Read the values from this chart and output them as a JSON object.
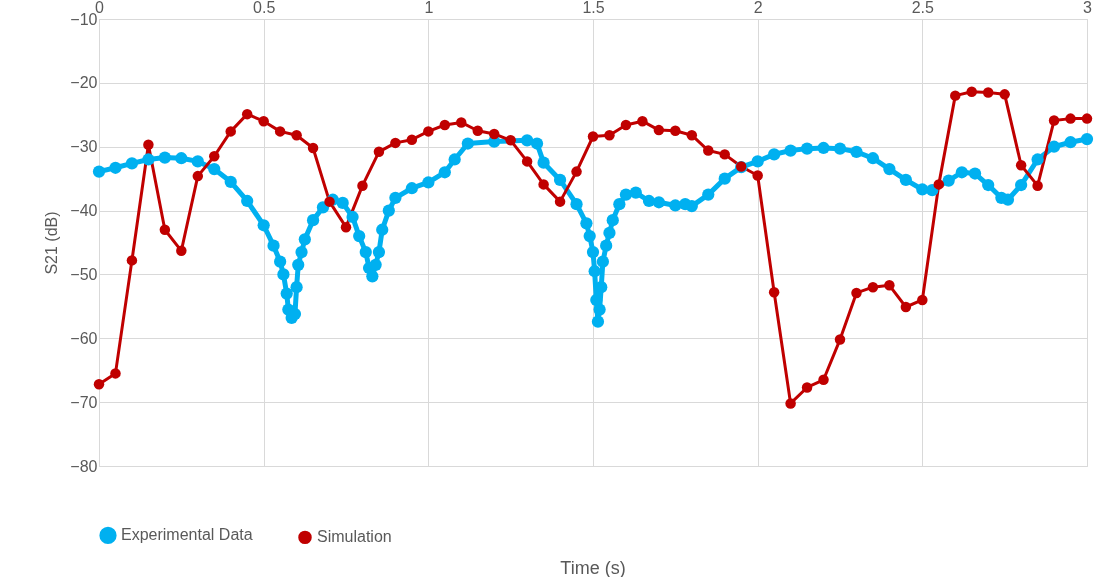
{
  "chart_data": {
    "type": "line",
    "xlabel": "Time (s)",
    "ylabel": "S21 (dB)",
    "xlim": [
      0,
      3
    ],
    "xticks": [
      0,
      0.5,
      1,
      1.5,
      2,
      2.5,
      3
    ],
    "ylim": [
      -80,
      -10
    ],
    "yticks": [
      -80,
      -70,
      -60,
      -50,
      -40,
      -30,
      -20,
      -10
    ],
    "grid": true,
    "legend": "bottom",
    "marker": "circle",
    "line_style": "solid",
    "series": [
      {
        "name": "Experimental Data",
        "color": "#00b0f0",
        "x": [
          0,
          0.05,
          0.1,
          0.15,
          0.2,
          0.25,
          0.3,
          0.35,
          0.4,
          0.45,
          0.5,
          0.53,
          0.55,
          0.56,
          0.57,
          0.575,
          0.585,
          0.595,
          0.6,
          0.605,
          0.615,
          0.625,
          0.65,
          0.68,
          0.71,
          0.74,
          0.77,
          0.79,
          0.81,
          0.82,
          0.83,
          0.84,
          0.85,
          0.86,
          0.88,
          0.9,
          0.95,
          1.0,
          1.05,
          1.08,
          1.12,
          1.2,
          1.3,
          1.33,
          1.35,
          1.4,
          1.45,
          1.48,
          1.49,
          1.5,
          1.505,
          1.51,
          1.515,
          1.52,
          1.525,
          1.53,
          1.54,
          1.55,
          1.56,
          1.58,
          1.6,
          1.63,
          1.67,
          1.7,
          1.75,
          1.78,
          1.8,
          1.85,
          1.9,
          1.95,
          2.0,
          2.05,
          2.1,
          2.15,
          2.2,
          2.25,
          2.3,
          2.35,
          2.4,
          2.45,
          2.5,
          2.53,
          2.58,
          2.62,
          2.66,
          2.7,
          2.74,
          2.76,
          2.8,
          2.85,
          2.9,
          2.95,
          3.0
        ],
        "values": [
          -33.9,
          -33.3,
          -32.6,
          -32.0,
          -31.7,
          -31.8,
          -32.3,
          -33.5,
          -35.5,
          -38.5,
          -42.3,
          -45.5,
          -48,
          -50,
          -53,
          -55.5,
          -56.8,
          -56.2,
          -52,
          -48.5,
          -46.5,
          -44.5,
          -41.5,
          -39.5,
          -38.3,
          -38.8,
          -41,
          -44,
          -46.5,
          -49,
          -50.3,
          -48.5,
          -46.5,
          -43,
          -40,
          -38,
          -36.5,
          -35.6,
          -34,
          -32,
          -29.5,
          -29.2,
          -29,
          -29.5,
          -32.5,
          -35.2,
          -39,
          -42,
          -44,
          -46.5,
          -49.5,
          -54,
          -57.4,
          -55.5,
          -52,
          -48,
          -45.5,
          -43.5,
          -41.5,
          -39,
          -37.5,
          -37.2,
          -38.5,
          -38.7,
          -39.2,
          -39,
          -39.3,
          -37.5,
          -35,
          -33.2,
          -32.3,
          -31.2,
          -30.6,
          -30.3,
          -30.2,
          -30.3,
          -30.8,
          -31.8,
          -33.5,
          -35.2,
          -36.7,
          -36.8,
          -35.3,
          -34,
          -34.2,
          -36,
          -38,
          -38.3,
          -36,
          -32,
          -30,
          -29.3,
          -28.8
        ]
      },
      {
        "name": "Simulation",
        "color": "#c00000",
        "x": [
          0,
          0.05,
          0.1,
          0.15,
          0.2,
          0.25,
          0.3,
          0.35,
          0.4,
          0.45,
          0.5,
          0.55,
          0.6,
          0.65,
          0.7,
          0.75,
          0.8,
          0.85,
          0.9,
          0.95,
          1.0,
          1.05,
          1.1,
          1.15,
          1.2,
          1.25,
          1.3,
          1.35,
          1.4,
          1.45,
          1.5,
          1.55,
          1.6,
          1.65,
          1.7,
          1.75,
          1.8,
          1.85,
          1.9,
          1.95,
          2.0,
          2.05,
          2.1,
          2.15,
          2.2,
          2.25,
          2.3,
          2.35,
          2.4,
          2.45,
          2.5,
          2.55,
          2.6,
          2.65,
          2.7,
          2.75,
          2.8,
          2.85,
          2.9,
          2.95,
          3.0
        ],
        "values": [
          -67.2,
          -65.5,
          -47.8,
          -29.7,
          -43,
          -46.3,
          -34.6,
          -31.5,
          -27.6,
          -24.9,
          -26,
          -27.6,
          -28.2,
          -30.2,
          -38.6,
          -42.6,
          -36.1,
          -30.8,
          -29.4,
          -28.9,
          -27.6,
          -26.6,
          -26.2,
          -27.5,
          -28.0,
          -29,
          -32.3,
          -35.9,
          -38.6,
          -33.9,
          -28.4,
          -28.2,
          -26.6,
          -26.0,
          -27.4,
          -27.5,
          -28.2,
          -30.6,
          -31.2,
          -33.1,
          -34.5,
          -52.8,
          -70.2,
          -67.7,
          -66.5,
          -60.2,
          -52.9,
          -52.0,
          -51.7,
          -55.1,
          -54.0,
          -35.9,
          -22.0,
          -21.4,
          -21.5,
          -21.8,
          -32.9,
          -36.1,
          -25.9,
          -25.6,
          -25.6
        ]
      }
    ]
  }
}
